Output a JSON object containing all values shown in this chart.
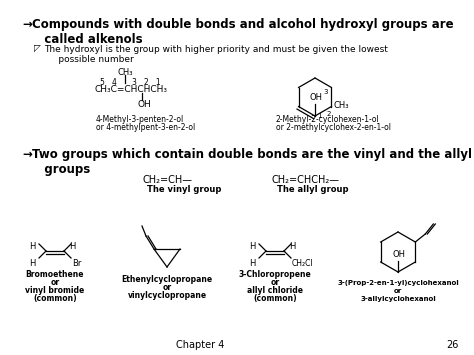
{
  "bg_color": "#ffffff",
  "title1_arrow": "→",
  "title1_text": "Compounds with double bonds and alcohol hydroxyl groups are\n   called alkenols",
  "bullet_sym": "◸",
  "bullet_text": "The hydroxyl is the group with higher priority and must be given the lowest\n     possible number",
  "title2_arrow": "→",
  "title2_text": "Two groups which contain double bonds are the vinyl and the allyl\n   groups",
  "vinyl_formula": "CH₂=CH—",
  "vinyl_label": "The vinyl group",
  "allyl_formula": "CH₂=CHCH₂—",
  "allyl_label": "The allyl group",
  "compound1_formula_line1": "CH₃",
  "compound1_formula_line2": "5   4      3   2   1",
  "compound1_formula_line3": "CH₃C=CHCHCH₃",
  "compound1_formula_line4": "OH",
  "compound1_name1": "4-Methyl-3-penten-2-ol",
  "compound1_name2": "or 4-methylpent-3-en-2-ol",
  "compound2_oh": "OH",
  "compound2_ch3": "CH₃",
  "compound2_num1": "1",
  "compound2_num2": "2",
  "compound2_num3": "3",
  "compound2_name1": "2-Methyl-2-cyclohexen-1-ol",
  "compound2_name2": "or 2-methylcyclohex-2-en-1-ol",
  "bottom_label1a": "Bromoethene",
  "bottom_label1b": "or",
  "bottom_label1c": "vinyl bromide",
  "bottom_label1d": "(common)",
  "bottom_label2a": "Ethenylcyclopropane",
  "bottom_label2b": "or",
  "bottom_label2c": "vinylcyclopropane",
  "bottom_label3a": "3-Chloropropene",
  "bottom_label3b": "or",
  "bottom_label3c": "allyl chloride",
  "bottom_label3d": "(common)",
  "bottom_label4a": "3-(Prop-2-en-1-yl)cyclohexanol",
  "bottom_label4b": "or",
  "bottom_label4c": "3-allylcyclohexanol",
  "h_label": "H",
  "br_label": "Br",
  "ch2cl_label": "CH₂Cl",
  "oh_label": "OH",
  "footer": "Chapter 4",
  "page": "26"
}
